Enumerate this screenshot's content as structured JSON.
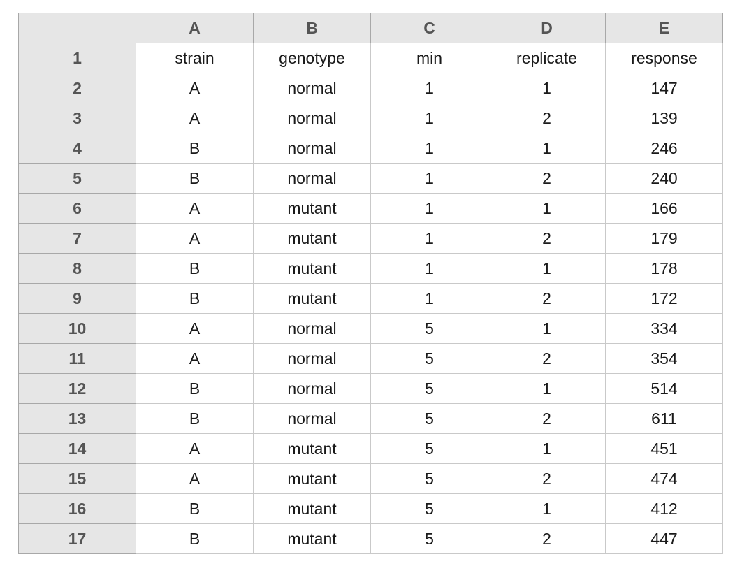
{
  "columns": [
    "A",
    "B",
    "C",
    "D",
    "E"
  ],
  "rows": [
    {
      "num": "1",
      "cells": [
        "strain",
        "genotype",
        "min",
        "replicate",
        "response"
      ]
    },
    {
      "num": "2",
      "cells": [
        "A",
        "normal",
        "1",
        "1",
        "147"
      ]
    },
    {
      "num": "3",
      "cells": [
        "A",
        "normal",
        "1",
        "2",
        "139"
      ]
    },
    {
      "num": "4",
      "cells": [
        "B",
        "normal",
        "1",
        "1",
        "246"
      ]
    },
    {
      "num": "5",
      "cells": [
        "B",
        "normal",
        "1",
        "2",
        "240"
      ]
    },
    {
      "num": "6",
      "cells": [
        "A",
        "mutant",
        "1",
        "1",
        "166"
      ]
    },
    {
      "num": "7",
      "cells": [
        "A",
        "mutant",
        "1",
        "2",
        "179"
      ]
    },
    {
      "num": "8",
      "cells": [
        "B",
        "mutant",
        "1",
        "1",
        "178"
      ]
    },
    {
      "num": "9",
      "cells": [
        "B",
        "mutant",
        "1",
        "2",
        "172"
      ]
    },
    {
      "num": "10",
      "cells": [
        "A",
        "normal",
        "5",
        "1",
        "334"
      ]
    },
    {
      "num": "11",
      "cells": [
        "A",
        "normal",
        "5",
        "2",
        "354"
      ]
    },
    {
      "num": "12",
      "cells": [
        "B",
        "normal",
        "5",
        "1",
        "514"
      ]
    },
    {
      "num": "13",
      "cells": [
        "B",
        "normal",
        "5",
        "2",
        "611"
      ]
    },
    {
      "num": "14",
      "cells": [
        "A",
        "mutant",
        "5",
        "1",
        "451"
      ]
    },
    {
      "num": "15",
      "cells": [
        "A",
        "mutant",
        "5",
        "2",
        "474"
      ]
    },
    {
      "num": "16",
      "cells": [
        "B",
        "mutant",
        "5",
        "1",
        "412"
      ]
    },
    {
      "num": "17",
      "cells": [
        "B",
        "mutant",
        "5",
        "2",
        "447"
      ]
    }
  ]
}
